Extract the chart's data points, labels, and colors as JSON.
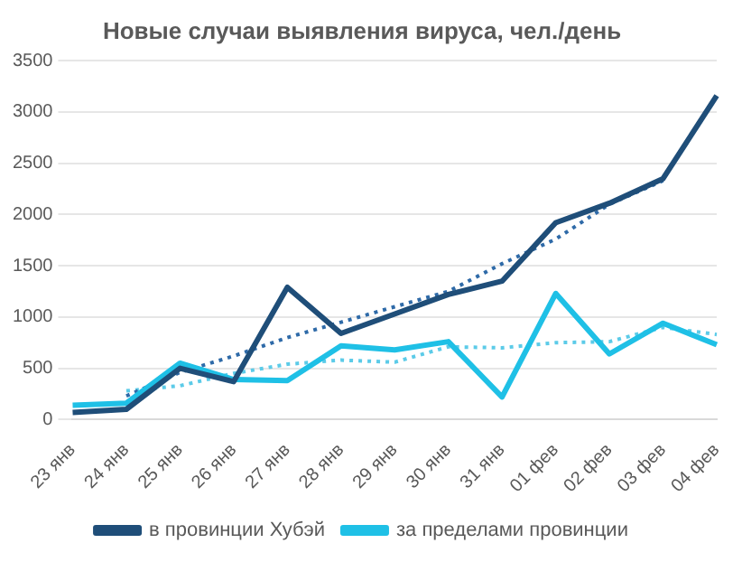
{
  "chart_data": {
    "type": "line",
    "title": "Новые случаи выявления вируса, чел./день",
    "categories": [
      "23 янв",
      "24 янв",
      "25 янв",
      "26 янв",
      "27 янв",
      "28 янв",
      "29 янв",
      "30 янв",
      "31 янв",
      "01 фев",
      "02 фев",
      "03 фев",
      "04 фев"
    ],
    "series": [
      {
        "name": "в провинции Хубэй",
        "color": "#1f4e79",
        "values": [
          70,
          100,
          500,
          370,
          1290,
          840,
          1030,
          1220,
          1350,
          1920,
          2110,
          2350,
          3160
        ]
      },
      {
        "name": "за пределами провинции",
        "color": "#1fc0e6",
        "values": [
          140,
          160,
          550,
          390,
          380,
          720,
          680,
          760,
          220,
          1230,
          640,
          940,
          730
        ]
      },
      {
        "color": "#2e6aa8",
        "line_style": "dotted",
        "values": [
          null,
          230,
          460,
          620,
          800,
          950,
          1100,
          1250,
          1520,
          1760,
          2100,
          2330,
          null
        ]
      },
      {
        "color": "#5ccbe8",
        "line_style": "dotted",
        "values": [
          null,
          280,
          330,
          450,
          540,
          580,
          560,
          710,
          700,
          750,
          760,
          900,
          830
        ]
      }
    ],
    "ylim": [
      0,
      3500
    ],
    "yticks": [
      0,
      500,
      1000,
      1500,
      2000,
      2500,
      3000,
      3500
    ],
    "grid": "y",
    "legend": "bottom",
    "marker": "none"
  }
}
